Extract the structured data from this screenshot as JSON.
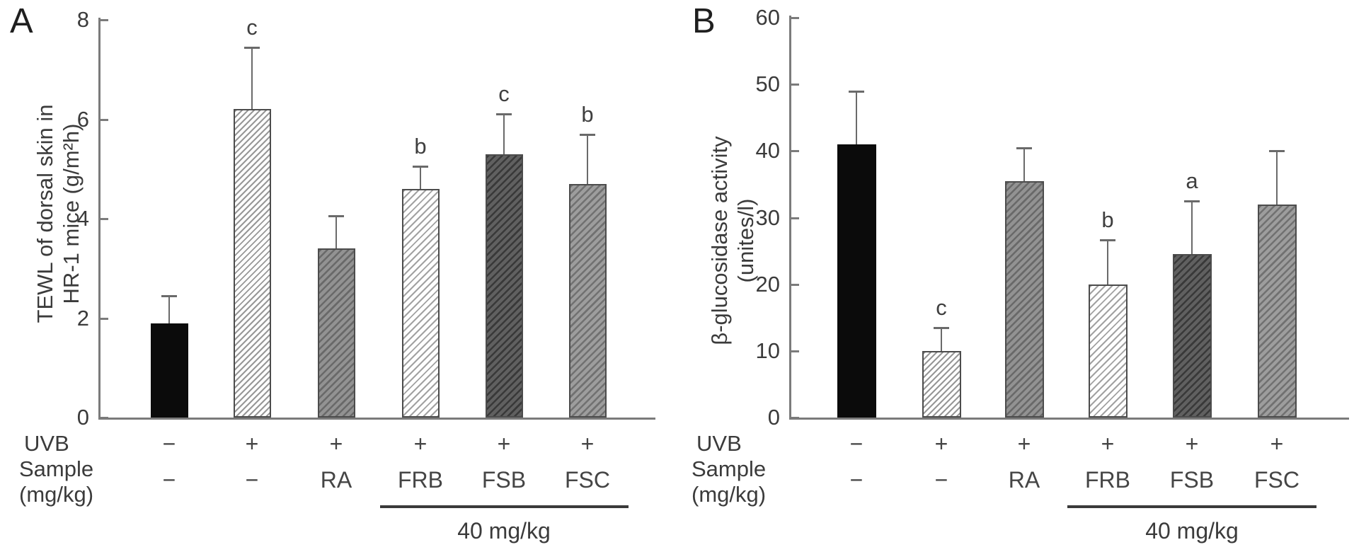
{
  "chart_data": [
    {
      "type": "bar",
      "panel_label": "A",
      "title": "",
      "ylabel": "TEWL of dorsal skin in HR-1 mice (g/m²h)",
      "ylabel_lines": [
        "TEWL of dorsal skin in",
        "HR-1 mice (g/m²h)"
      ],
      "ylim": [
        0,
        8
      ],
      "yticks": [
        0,
        2,
        4,
        6,
        8
      ],
      "grid": false,
      "legend": "none",
      "categories": [
        "UVB−/−",
        "UVB+/−",
        "UVB+/RA",
        "UVB+/FRB",
        "UVB+/FSB",
        "UVB+/FSC"
      ],
      "series": [
        {
          "name": "TEWL (g/m²h)",
          "values": [
            1.9,
            6.2,
            3.4,
            4.6,
            5.3,
            4.7
          ],
          "errors": [
            0.55,
            1.25,
            0.65,
            0.45,
            0.8,
            1.0
          ],
          "sig_letters": [
            "",
            "c",
            "",
            "b",
            "c",
            "b"
          ]
        }
      ],
      "bar_styles": [
        "solid-black",
        "hatch-light",
        "hatch-gray",
        "hatch-light2",
        "hatch-dark",
        "hatch-medium"
      ],
      "x_axis_rows": {
        "uvb_label": "UVB",
        "sample_label_lines": [
          "Sample",
          "(mg/kg)"
        ],
        "uvb": [
          "−",
          "+",
          "+",
          "+",
          "+",
          "+"
        ],
        "sample": [
          "−",
          "−",
          "RA",
          "FRB",
          "FSB",
          "FSC"
        ],
        "group_label": "40 mg/kg",
        "group_covers": [
          "FRB",
          "FSB",
          "FSC"
        ]
      }
    },
    {
      "type": "bar",
      "panel_label": "B",
      "title": "",
      "ylabel": "β-glucosidase activity (unites/l)",
      "ylabel_lines": [
        "β-glucosidase activity",
        "(unites/l)"
      ],
      "ylim": [
        0,
        60
      ],
      "yticks": [
        0,
        10,
        20,
        30,
        40,
        50,
        60
      ],
      "grid": false,
      "legend": "none",
      "categories": [
        "UVB−/−",
        "UVB+/−",
        "UVB+/RA",
        "UVB+/FRB",
        "UVB+/FSB",
        "UVB+/FSC"
      ],
      "series": [
        {
          "name": "β-glucosidase activity (unites/l)",
          "values": [
            41,
            10,
            35.5,
            20,
            24.5,
            32
          ],
          "errors": [
            8,
            3.5,
            5,
            6.7,
            8,
            8
          ],
          "sig_letters": [
            "",
            "c",
            "",
            "b",
            "a",
            ""
          ]
        }
      ],
      "bar_styles": [
        "solid-black",
        "hatch-light",
        "hatch-gray",
        "hatch-light2",
        "hatch-dark",
        "hatch-medium"
      ],
      "x_axis_rows": {
        "uvb_label": "UVB",
        "sample_label_lines": [
          "Sample",
          "(mg/kg)"
        ],
        "uvb": [
          "−",
          "+",
          "+",
          "+",
          "+",
          "+"
        ],
        "sample": [
          "−",
          "−",
          "RA",
          "FRB",
          "FSB",
          "FSC"
        ],
        "group_label": "40 mg/kg",
        "group_covers": [
          "FRB",
          "FSB",
          "FSC"
        ]
      }
    }
  ],
  "colors": {
    "axis": "#7b7b7b",
    "bar_border": "#4c4c4c",
    "solid_bar": "#0b0b0b",
    "text": "#3b3b3b"
  }
}
